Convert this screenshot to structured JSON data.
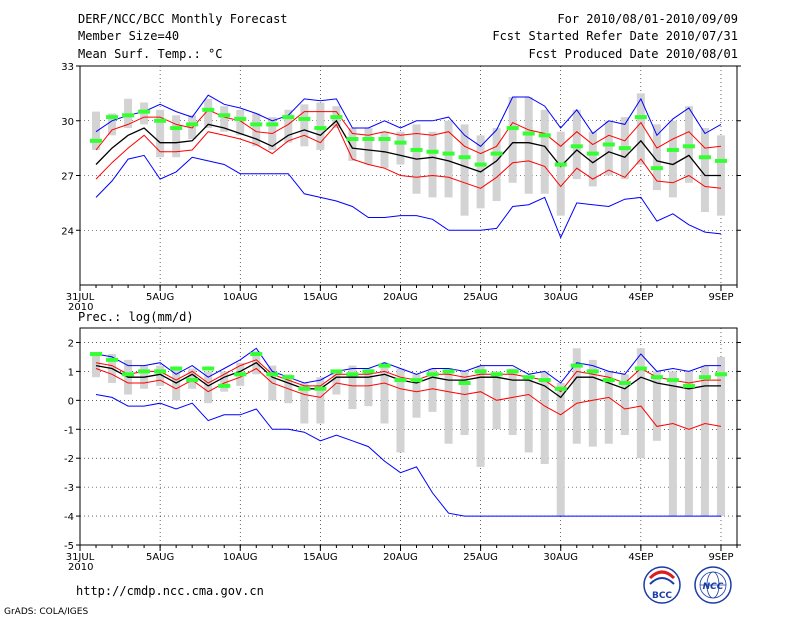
{
  "header": {
    "left_lines": [
      "DERF/NCC/BCC Monthly Forecast",
      "Member Size=40",
      "Mean Surf. Temp.: °C"
    ],
    "right_lines": [
      "For 2010/08/01-2010/09/09",
      "Fcst Started Refer Date 2010/07/31",
      "Fcst Produced Date 2010/08/01"
    ]
  },
  "footer": {
    "url": "http://cmdp.ncc.cma.gov.cn",
    "grads_credit": "GrADS: COLA/IGES",
    "logo_bcc_text": "BCC",
    "logo_ncc_text": "NCC"
  },
  "colors": {
    "box": "#d3d3d3",
    "max_line": "#0000ff",
    "spread_line": "#ff0000",
    "mean_line": "#000000",
    "median_mark": "#33ff33",
    "logo_blue": "#1a3ca8",
    "logo_red": "#d81e1e"
  },
  "chart_data": [
    {
      "type": "box-line",
      "title": "Mean Surf. Temp.: °C",
      "x": [
        1,
        2,
        3,
        4,
        5,
        6,
        7,
        8,
        9,
        10,
        11,
        12,
        13,
        14,
        15,
        16,
        17,
        18,
        19,
        20,
        21,
        22,
        23,
        24,
        25,
        26,
        27,
        28,
        29,
        30,
        31,
        32,
        33,
        34,
        35,
        36,
        37,
        38,
        39,
        40
      ],
      "x_tick_labels": [
        "31JUL",
        "5AUG",
        "10AUG",
        "15AUG",
        "20AUG",
        "25AUG",
        "30AUG",
        "4SEP",
        "9SEP"
      ],
      "x_tick_positions": [
        0,
        5,
        10,
        15,
        20,
        25,
        30,
        35,
        40
      ],
      "x_sublabel": "2010",
      "ylim": [
        21,
        33
      ],
      "y_ticks": [
        24,
        27,
        30,
        33
      ],
      "series": [
        {
          "name": "max",
          "values": [
            29.4,
            30.0,
            30.3,
            30.5,
            30.9,
            30.5,
            30.2,
            31.4,
            30.9,
            30.7,
            30.4,
            30.0,
            30.3,
            31.2,
            31.1,
            31.2,
            29.6,
            29.6,
            30.0,
            29.6,
            30.0,
            30.0,
            30.2,
            29.2,
            28.6,
            29.5,
            31.3,
            31.3,
            30.8,
            29.6,
            30.6,
            29.3,
            30.0,
            29.8,
            31.2,
            29.2,
            30.1,
            30.7,
            29.3,
            29.8
          ]
        },
        {
          "name": "upper",
          "values": [
            28.4,
            29.5,
            29.8,
            30.2,
            30.2,
            29.8,
            29.6,
            30.6,
            30.2,
            30.0,
            29.4,
            29.3,
            29.8,
            30.5,
            30.5,
            30.5,
            29.3,
            29.2,
            29.4,
            29.2,
            29.3,
            29.2,
            29.4,
            28.6,
            28.2,
            28.6,
            29.9,
            29.5,
            29.3,
            28.6,
            29.4,
            28.7,
            29.2,
            28.9,
            29.9,
            28.5,
            29.0,
            29.4,
            28.5,
            28.6
          ]
        },
        {
          "name": "mean",
          "values": [
            27.6,
            28.5,
            29.2,
            29.6,
            28.8,
            28.8,
            28.9,
            29.8,
            29.6,
            29.3,
            29.0,
            28.6,
            29.2,
            29.5,
            29.2,
            30.0,
            28.5,
            28.4,
            28.3,
            28.1,
            27.9,
            28.0,
            27.8,
            27.5,
            27.2,
            27.8,
            28.8,
            28.8,
            28.6,
            27.5,
            28.4,
            27.7,
            28.3,
            28.0,
            28.9,
            27.8,
            27.6,
            28.1,
            27.0,
            27.0
          ]
        },
        {
          "name": "lower",
          "values": [
            26.8,
            27.7,
            28.5,
            29.2,
            28.3,
            28.3,
            28.4,
            29.4,
            29.2,
            29.0,
            28.7,
            28.2,
            28.9,
            29.2,
            28.8,
            29.8,
            27.9,
            27.6,
            27.4,
            27.0,
            26.9,
            27.0,
            26.9,
            26.6,
            26.3,
            26.9,
            27.7,
            27.8,
            27.5,
            26.4,
            27.4,
            26.8,
            27.3,
            26.9,
            27.9,
            26.7,
            26.6,
            27.0,
            26.4,
            26.3
          ]
        },
        {
          "name": "min",
          "values": [
            25.8,
            26.7,
            27.9,
            28.1,
            26.8,
            27.2,
            28.0,
            27.8,
            27.6,
            27.1,
            27.1,
            27.1,
            27.1,
            26.0,
            25.8,
            25.6,
            25.3,
            24.7,
            24.7,
            24.8,
            24.8,
            24.6,
            24.0,
            24.0,
            24.0,
            24.1,
            25.3,
            25.4,
            25.8,
            23.6,
            25.5,
            25.4,
            25.3,
            25.7,
            25.8,
            24.5,
            24.9,
            24.3,
            23.9,
            23.8
          ]
        }
      ],
      "boxes": {
        "low": [
          28.4,
          29.2,
          29.6,
          29.8,
          28.0,
          28.0,
          29.0,
          29.6,
          29.4,
          29.2,
          28.6,
          28.4,
          28.8,
          28.6,
          28.4,
          29.6,
          27.8,
          27.6,
          27.4,
          27.6,
          26.0,
          25.8,
          25.8,
          24.8,
          25.2,
          25.6,
          26.6,
          26.0,
          26.0,
          24.8,
          26.8,
          26.4,
          27.0,
          26.8,
          27.6,
          26.2,
          25.8,
          26.6,
          25.0,
          24.8
        ],
        "high": [
          30.5,
          30.4,
          31.2,
          31.0,
          30.6,
          30.3,
          30.3,
          31.2,
          30.8,
          30.6,
          30.4,
          30.2,
          30.6,
          30.9,
          31.0,
          30.8,
          29.6,
          29.6,
          29.4,
          29.4,
          29.8,
          29.4,
          30.0,
          29.8,
          29.2,
          29.6,
          31.3,
          31.3,
          30.6,
          29.4,
          30.6,
          29.4,
          30.0,
          30.2,
          31.5,
          29.8,
          30.0,
          30.8,
          29.6,
          29.2
        ]
      },
      "medians": [
        28.9,
        30.2,
        30.3,
        30.5,
        30.0,
        29.6,
        29.8,
        30.6,
        30.3,
        30.1,
        29.8,
        29.8,
        30.2,
        30.1,
        29.6,
        30.2,
        29.0,
        29.0,
        29.0,
        28.8,
        28.4,
        28.3,
        28.2,
        28.0,
        27.6,
        28.2,
        29.6,
        29.3,
        29.2,
        27.6,
        28.6,
        28.2,
        28.7,
        28.5,
        30.2,
        27.4,
        28.4,
        28.6,
        28.0,
        27.8
      ]
    },
    {
      "type": "box-line",
      "title": "Prec.: log(mm/d)",
      "x": [
        1,
        2,
        3,
        4,
        5,
        6,
        7,
        8,
        9,
        10,
        11,
        12,
        13,
        14,
        15,
        16,
        17,
        18,
        19,
        20,
        21,
        22,
        23,
        24,
        25,
        26,
        27,
        28,
        29,
        30,
        31,
        32,
        33,
        34,
        35,
        36,
        37,
        38,
        39,
        40
      ],
      "x_tick_labels": [
        "31JUL",
        "5AUG",
        "10AUG",
        "15AUG",
        "20AUG",
        "25AUG",
        "30AUG",
        "4SEP",
        "9SEP"
      ],
      "x_tick_positions": [
        0,
        5,
        10,
        15,
        20,
        25,
        30,
        35,
        40
      ],
      "x_sublabel": "2010",
      "ylim": [
        -5,
        2.5
      ],
      "y_ticks": [
        -5,
        -4,
        -3,
        -2,
        -1,
        0,
        1,
        2
      ],
      "series": [
        {
          "name": "max",
          "values": [
            1.6,
            1.5,
            1.2,
            1.2,
            1.3,
            0.9,
            1.2,
            0.8,
            1.1,
            1.4,
            1.8,
            1.0,
            0.8,
            0.6,
            0.7,
            1.0,
            1.1,
            1.1,
            1.3,
            1.1,
            0.9,
            1.1,
            1.1,
            1.0,
            1.2,
            1.2,
            1.2,
            0.9,
            1.0,
            0.6,
            1.3,
            1.2,
            1.0,
            0.9,
            1.6,
            1.0,
            1.1,
            1.0,
            1.2,
            1.2
          ]
        },
        {
          "name": "upper",
          "values": [
            1.3,
            1.2,
            0.9,
            1.0,
            1.0,
            0.7,
            1.0,
            0.6,
            0.9,
            1.2,
            1.4,
            0.9,
            0.7,
            0.5,
            0.5,
            0.9,
            0.9,
            0.9,
            1.0,
            0.8,
            0.7,
            0.9,
            0.9,
            0.8,
            0.9,
            0.9,
            0.9,
            0.8,
            0.7,
            0.3,
            1.0,
            0.9,
            0.8,
            0.6,
            1.1,
            0.8,
            0.7,
            0.6,
            0.7,
            0.7
          ]
        },
        {
          "name": "mean",
          "values": [
            1.2,
            1.1,
            0.8,
            0.8,
            0.9,
            0.6,
            0.9,
            0.5,
            0.8,
            1.0,
            1.3,
            0.8,
            0.6,
            0.4,
            0.4,
            0.8,
            0.8,
            0.8,
            0.9,
            0.7,
            0.6,
            0.8,
            0.7,
            0.7,
            0.8,
            0.8,
            0.7,
            0.7,
            0.5,
            0.1,
            0.8,
            0.8,
            0.6,
            0.4,
            0.8,
            0.6,
            0.5,
            0.4,
            0.5,
            0.5
          ]
        },
        {
          "name": "lower",
          "values": [
            1.1,
            0.9,
            0.6,
            0.6,
            0.7,
            0.4,
            0.7,
            0.3,
            0.6,
            0.8,
            1.1,
            0.6,
            0.4,
            0.2,
            0.1,
            0.6,
            0.5,
            0.5,
            0.6,
            0.4,
            0.3,
            0.4,
            0.3,
            0.2,
            0.3,
            0.0,
            0.1,
            0.2,
            -0.2,
            -0.5,
            -0.1,
            0.0,
            0.1,
            -0.3,
            -0.2,
            -0.9,
            -0.8,
            -1.0,
            -0.8,
            -0.9
          ]
        },
        {
          "name": "min",
          "values": [
            0.2,
            0.1,
            -0.2,
            -0.2,
            -0.1,
            -0.3,
            -0.1,
            -0.7,
            -0.5,
            -0.5,
            -0.3,
            -1.0,
            -1.0,
            -1.1,
            -1.4,
            -1.2,
            -1.4,
            -1.6,
            -2.1,
            -2.5,
            -2.3,
            -3.2,
            -3.9,
            -4.0,
            -4.0,
            -4.0,
            -4.0,
            -4.0,
            -4.0,
            -4.0,
            -4.0,
            -4.0,
            -4.0,
            -4.0,
            -4.0,
            -4.0,
            -4.0,
            -4.0,
            -4.0,
            -4.0
          ]
        }
      ],
      "boxes": {
        "low": [
          0.8,
          0.6,
          0.2,
          0.4,
          0.5,
          0.0,
          0.4,
          -0.1,
          0.3,
          0.5,
          0.9,
          0.0,
          -0.1,
          -0.8,
          -0.8,
          0.2,
          -0.3,
          -0.2,
          -0.8,
          -1.8,
          -0.6,
          -0.4,
          -1.5,
          -1.2,
          -2.3,
          -1.0,
          -1.2,
          -1.8,
          -2.2,
          -4.0,
          -1.5,
          -1.6,
          -1.5,
          -1.2,
          -2.0,
          -1.4,
          -4.0,
          -4.0,
          -4.0,
          -4.0
        ],
        "high": [
          1.6,
          1.6,
          1.4,
          1.2,
          1.2,
          1.1,
          1.1,
          1.0,
          1.0,
          1.3,
          1.7,
          1.2,
          0.9,
          0.6,
          0.8,
          1.0,
          1.2,
          1.1,
          1.3,
          1.1,
          0.9,
          1.1,
          1.1,
          1.0,
          1.2,
          1.0,
          1.1,
          0.8,
          1.0,
          0.6,
          1.8,
          1.4,
          1.0,
          0.9,
          1.8,
          1.0,
          1.0,
          1.0,
          1.2,
          1.5
        ]
      },
      "medians": [
        1.6,
        1.4,
        0.9,
        1.0,
        1.0,
        1.1,
        0.7,
        1.1,
        0.5,
        0.9,
        1.6,
        0.9,
        0.8,
        0.4,
        0.4,
        1.0,
        0.9,
        1.0,
        1.2,
        0.7,
        0.7,
        0.9,
        1.0,
        0.6,
        1.0,
        0.9,
        1.0,
        0.8,
        0.7,
        0.4,
        1.2,
        1.0,
        0.7,
        0.6,
        1.1,
        0.8,
        0.7,
        0.5,
        0.8,
        0.9
      ]
    }
  ]
}
